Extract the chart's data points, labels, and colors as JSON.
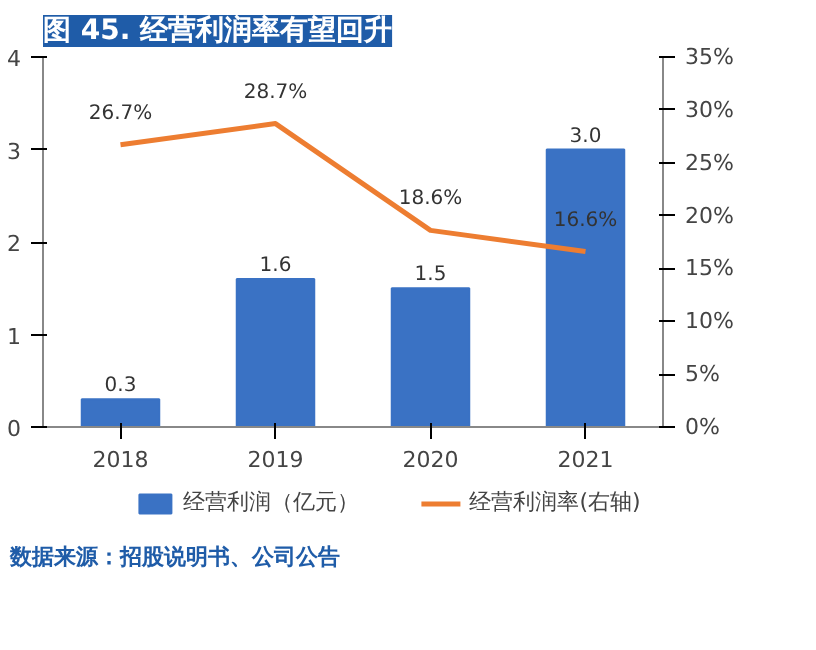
{
  "chart_data": {
    "type": "bar",
    "title": "图 45. 经营利润率有望回升",
    "categories": [
      "2018",
      "2019",
      "2020",
      "2021"
    ],
    "series": [
      {
        "name": "经营利润（亿元）",
        "color": "#3a72c4",
        "values": [
          0.3,
          1.6,
          1.5,
          3.0
        ],
        "value_labels": [
          "0.3",
          "1.6",
          "1.5",
          "3.0"
        ]
      },
      {
        "name": "经营利润率(右轴)",
        "type": "line",
        "axis": "y2",
        "color": "#ed7d31",
        "values": [
          26.7,
          28.7,
          18.6,
          16.6
        ],
        "value_labels": [
          "26.7%",
          "28.7%",
          "18.6%",
          "16.6%"
        ]
      }
    ],
    "ylim": [
      0,
      4
    ],
    "yticks": [
      0,
      1,
      2,
      3,
      4
    ],
    "y2lim": [
      0,
      35
    ],
    "y2ticks": [
      {
        "value": 0,
        "label": "0%"
      },
      {
        "value": 5,
        "label": "5%"
      },
      {
        "value": 10,
        "label": "10%"
      },
      {
        "value": 15,
        "label": "15%"
      },
      {
        "value": 20,
        "label": "20%"
      },
      {
        "value": 25,
        "label": "25%"
      },
      {
        "value": 30,
        "label": "30%"
      },
      {
        "value": 35,
        "label": "35%"
      }
    ],
    "grid": false,
    "legend": "bottom",
    "marker": "none",
    "line_style": "solid",
    "annotations": [
      "数据来源：招股说明书、公司公告"
    ]
  }
}
